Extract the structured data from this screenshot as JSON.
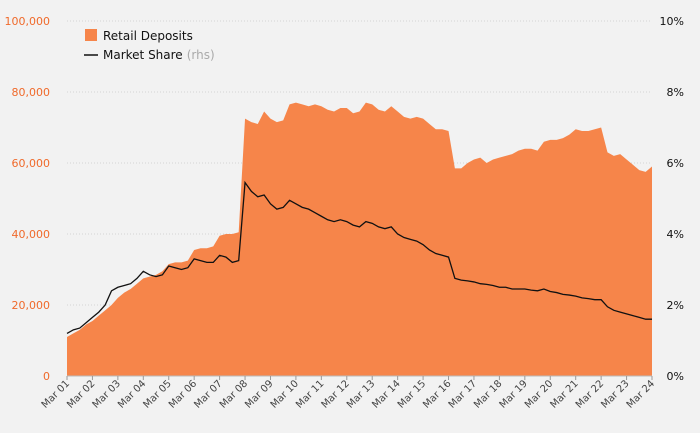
{
  "colors": {
    "area": "#f6854a",
    "line": "#111111",
    "left_axis_text": "#f06a2b",
    "grid": "#d4d4d4",
    "background": "#f2f2f2"
  },
  "legend": {
    "deposits_label": "Retail Deposits",
    "share_label": "Market Share",
    "share_suffix": "(rhs)",
    "placement": "top-left"
  },
  "chart_data": {
    "type": "area",
    "title": "",
    "grid": true,
    "y_left": {
      "min": 0,
      "max": 100000,
      "ticks": [
        0,
        20000,
        40000,
        60000,
        80000,
        100000
      ],
      "tick_labels": [
        "0",
        "20,000",
        "40,000",
        "60,000",
        "80,000",
        "100,000"
      ]
    },
    "y_right": {
      "min": 0,
      "max": 10,
      "ticks": [
        0,
        2,
        4,
        6,
        8,
        10
      ],
      "tick_labels": [
        "0%",
        "2%",
        "4%",
        "6%",
        "8%",
        "10%"
      ]
    },
    "x_min": 2001,
    "x_max": 2024,
    "x_ticks": [
      2001,
      2002,
      2003,
      2004,
      2005,
      2006,
      2007,
      2008,
      2009,
      2010,
      2011,
      2012,
      2013,
      2014,
      2015,
      2016,
      2017,
      2018,
      2019,
      2020,
      2021,
      2022,
      2023,
      2024
    ],
    "x_tick_labels": [
      "Mar 01",
      "Mar 02",
      "Mar 03",
      "Mar 04",
      "Mar 05",
      "Mar 06",
      "Mar 07",
      "Mar 08",
      "Mar 09",
      "Mar 10",
      "Mar 11",
      "Mar 12",
      "Mar 13",
      "Mar 14",
      "Mar 15",
      "Mar 16",
      "Mar 17",
      "Mar 18",
      "Mar 19",
      "Mar 20",
      "Mar 21",
      "Mar 22",
      "Mar 23",
      "Mar 24"
    ],
    "series": [
      {
        "name": "Retail Deposits",
        "type": "area",
        "axis": "left",
        "x": [
          2001,
          2001.25,
          2001.5,
          2001.75,
          2002,
          2002.25,
          2002.5,
          2002.75,
          2003,
          2003.25,
          2003.5,
          2003.75,
          2004,
          2004.25,
          2004.5,
          2004.75,
          2005,
          2005.25,
          2005.5,
          2005.75,
          2006,
          2006.25,
          2006.5,
          2006.75,
          2007,
          2007.25,
          2007.5,
          2007.75,
          2008,
          2008.25,
          2008.5,
          2008.75,
          2009,
          2009.25,
          2009.5,
          2009.75,
          2010,
          2010.25,
          2010.5,
          2010.75,
          2011,
          2011.25,
          2011.5,
          2011.75,
          2012,
          2012.25,
          2012.5,
          2012.75,
          2013,
          2013.25,
          2013.5,
          2013.75,
          2014,
          2014.25,
          2014.5,
          2014.75,
          2015,
          2015.25,
          2015.5,
          2015.75,
          2016,
          2016.25,
          2016.5,
          2016.75,
          2017,
          2017.25,
          2017.5,
          2017.75,
          2018,
          2018.25,
          2018.5,
          2018.75,
          2019,
          2019.25,
          2019.5,
          2019.75,
          2020,
          2020.25,
          2020.5,
          2020.75,
          2021,
          2021.25,
          2021.5,
          2021.75,
          2022,
          2022.25,
          2022.5,
          2022.75,
          2023,
          2023.25,
          2023.5,
          2023.75,
          2024
        ],
        "values": [
          11000,
          12000,
          13000,
          14500,
          15500,
          17000,
          18500,
          20000,
          22000,
          23500,
          24500,
          26000,
          27500,
          28000,
          28500,
          29500,
          31500,
          32000,
          32000,
          32500,
          35500,
          36000,
          36000,
          36500,
          39500,
          40000,
          40000,
          40500,
          72500,
          71500,
          71000,
          74500,
          72500,
          71500,
          72000,
          76500,
          77000,
          76500,
          76000,
          76500,
          76000,
          75000,
          74500,
          75500,
          75500,
          74000,
          74500,
          77000,
          76500,
          75000,
          74500,
          76000,
          74500,
          73000,
          72500,
          73000,
          72500,
          71000,
          69500,
          69500,
          69000,
          58500,
          58500,
          60000,
          61000,
          61500,
          60000,
          61000,
          61500,
          62000,
          62500,
          63500,
          64000,
          64000,
          63500,
          66000,
          66500,
          66500,
          67000,
          68000,
          69500,
          69000,
          69000,
          69500,
          70000,
          63000,
          62000,
          62500,
          61000,
          59500,
          58000,
          57500,
          59000
        ]
      },
      {
        "name": "Market Share",
        "type": "line",
        "axis": "right",
        "x": [
          2001,
          2001.25,
          2001.5,
          2001.75,
          2002,
          2002.25,
          2002.5,
          2002.75,
          2003,
          2003.25,
          2003.5,
          2003.75,
          2004,
          2004.25,
          2004.5,
          2004.75,
          2005,
          2005.25,
          2005.5,
          2005.75,
          2006,
          2006.25,
          2006.5,
          2006.75,
          2007,
          2007.25,
          2007.5,
          2007.75,
          2008,
          2008.25,
          2008.5,
          2008.75,
          2009,
          2009.25,
          2009.5,
          2009.75,
          2010,
          2010.25,
          2010.5,
          2010.75,
          2011,
          2011.25,
          2011.5,
          2011.75,
          2012,
          2012.25,
          2012.5,
          2012.75,
          2013,
          2013.25,
          2013.5,
          2013.75,
          2014,
          2014.25,
          2014.5,
          2014.75,
          2015,
          2015.25,
          2015.5,
          2015.75,
          2016,
          2016.25,
          2016.5,
          2016.75,
          2017,
          2017.25,
          2017.5,
          2017.75,
          2018,
          2018.25,
          2018.5,
          2018.75,
          2019,
          2019.25,
          2019.5,
          2019.75,
          2020,
          2020.25,
          2020.5,
          2020.75,
          2021,
          2021.25,
          2021.5,
          2021.75,
          2022,
          2022.25,
          2022.5,
          2022.75,
          2023,
          2023.25,
          2023.5,
          2023.75,
          2024
        ],
        "values": [
          1.2,
          1.3,
          1.35,
          1.5,
          1.65,
          1.8,
          2.0,
          2.4,
          2.5,
          2.55,
          2.6,
          2.75,
          2.95,
          2.85,
          2.8,
          2.85,
          3.1,
          3.05,
          3.0,
          3.05,
          3.3,
          3.25,
          3.2,
          3.2,
          3.4,
          3.35,
          3.2,
          3.25,
          5.45,
          5.2,
          5.05,
          5.1,
          4.85,
          4.7,
          4.75,
          4.95,
          4.85,
          4.75,
          4.7,
          4.6,
          4.5,
          4.4,
          4.35,
          4.4,
          4.35,
          4.25,
          4.2,
          4.35,
          4.3,
          4.2,
          4.15,
          4.2,
          4.0,
          3.9,
          3.85,
          3.8,
          3.7,
          3.55,
          3.45,
          3.4,
          3.35,
          2.75,
          2.7,
          2.68,
          2.65,
          2.6,
          2.58,
          2.55,
          2.5,
          2.5,
          2.45,
          2.45,
          2.45,
          2.42,
          2.4,
          2.45,
          2.38,
          2.35,
          2.3,
          2.28,
          2.25,
          2.2,
          2.18,
          2.15,
          2.15,
          1.95,
          1.85,
          1.8,
          1.75,
          1.7,
          1.65,
          1.6,
          1.6
        ]
      }
    ]
  }
}
